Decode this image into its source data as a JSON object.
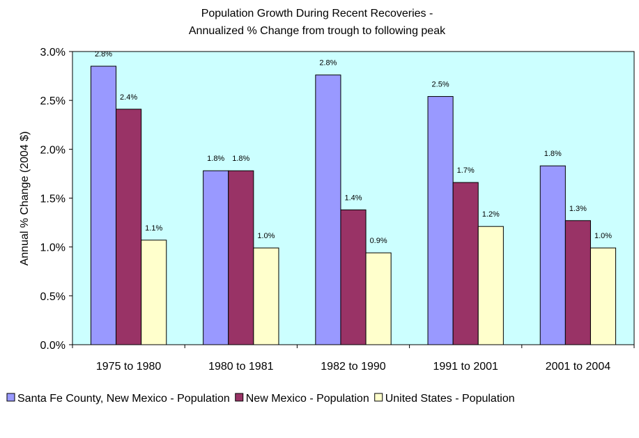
{
  "chart_data": {
    "type": "bar",
    "title": "Population Growth During Recent Recoveries -",
    "subtitle": "Annualized % Change from trough to following peak",
    "xlabel": "",
    "ylabel": "Annual % Change (2004 $)",
    "ylim": [
      0,
      0.03
    ],
    "yticks": [
      0,
      0.005,
      0.01,
      0.015,
      0.02,
      0.025,
      0.03
    ],
    "ytick_labels": [
      "0.0%",
      "0.5%",
      "1.0%",
      "1.5%",
      "2.0%",
      "2.5%",
      "3.0%"
    ],
    "categories": [
      "1975 to 1980",
      "1980 to 1981",
      "1982 to 1990",
      "1991 to 2001",
      "2001 to 2004"
    ],
    "series": [
      {
        "name": "Santa Fe County, New Mexico - Population",
        "color": "#9999ff",
        "values": [
          0.0285,
          0.0178,
          0.0276,
          0.0254,
          0.0183
        ],
        "labels": [
          "2.8%",
          "1.8%",
          "2.8%",
          "2.5%",
          "1.8%"
        ]
      },
      {
        "name": "New Mexico - Population",
        "color": "#993366",
        "values": [
          0.0241,
          0.0178,
          0.0138,
          0.0166,
          0.0127
        ],
        "labels": [
          "2.4%",
          "1.8%",
          "1.4%",
          "1.7%",
          "1.3%"
        ]
      },
      {
        "name": "United States - Population",
        "color": "#ffffcc",
        "values": [
          0.0107,
          0.0099,
          0.0094,
          0.0121,
          0.0099
        ],
        "labels": [
          "1.1%",
          "1.0%",
          "0.9%",
          "1.2%",
          "1.0%"
        ]
      }
    ],
    "plot_background": "#ccffff",
    "grid": false,
    "legend_position": "bottom"
  }
}
